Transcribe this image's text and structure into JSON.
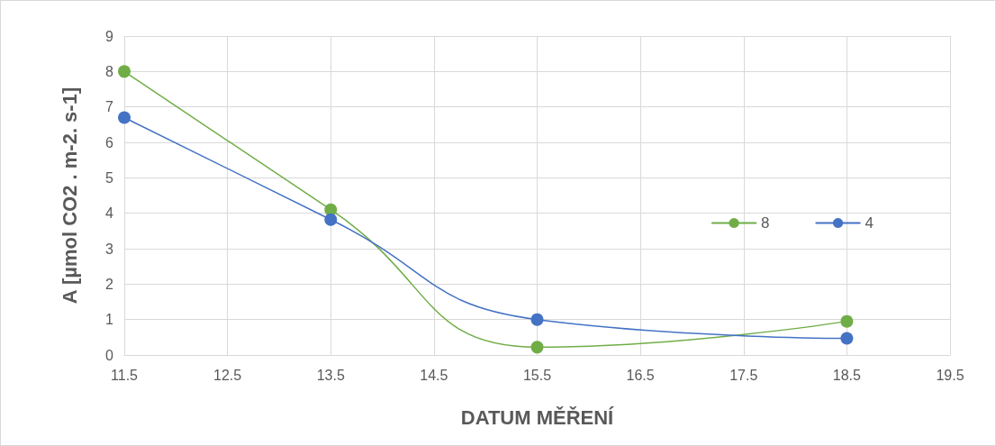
{
  "chart_data": {
    "type": "line",
    "xlabel": "DATUM MĚŘENÍ",
    "ylabel": "A [µmol CO2 . m-2. s-1]",
    "x": [
      11.5,
      13.5,
      15.5,
      18.5
    ],
    "series": [
      {
        "name": "8",
        "color": "#70ad47",
        "values": [
          8.0,
          4.1,
          0.22,
          0.95
        ]
      },
      {
        "name": "4",
        "color": "#4472c4",
        "values": [
          6.7,
          3.82,
          1.0,
          0.47
        ]
      }
    ],
    "xlim": [
      11.5,
      19.5
    ],
    "xticks": [
      11.5,
      12.5,
      13.5,
      14.5,
      15.5,
      16.5,
      17.5,
      18.5,
      19.5
    ],
    "ylim": [
      0,
      9
    ],
    "yticks": [
      0,
      1,
      2,
      3,
      4,
      5,
      6,
      7,
      8,
      9
    ],
    "grid": true,
    "legend": "right",
    "marker": "circle",
    "line_style": "solid"
  }
}
